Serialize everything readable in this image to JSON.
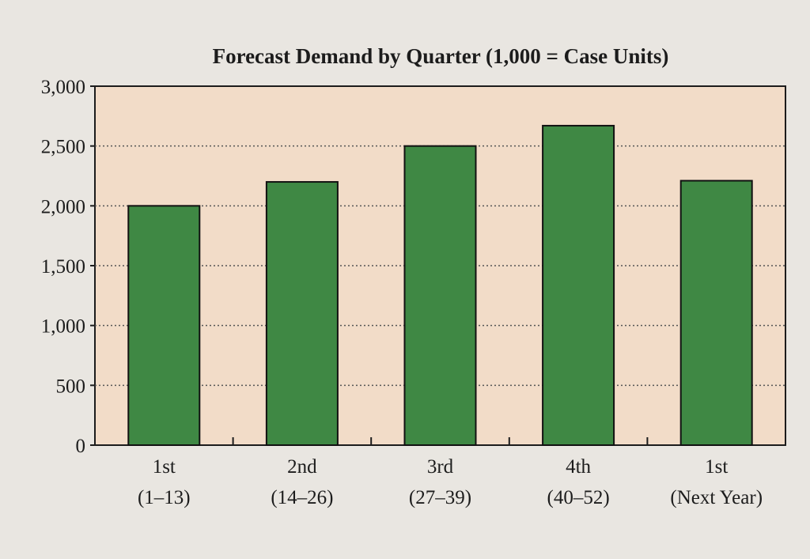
{
  "chart_data": {
    "type": "bar",
    "title": "Forecast Demand by Quarter (1,000 = Case Units)",
    "xlabel": "",
    "ylabel": "",
    "ylim": [
      0,
      3000
    ],
    "grid": true,
    "yticks": [
      0,
      500,
      1000,
      1500,
      2000,
      2500,
      3000
    ],
    "ytick_labels": [
      "0",
      "500",
      "1,000",
      "1,500",
      "2,000",
      "2,500",
      "3,000"
    ],
    "categories": [
      {
        "line1": "1st",
        "line2": "(1–13)"
      },
      {
        "line1": "2nd",
        "line2": "(14–26)"
      },
      {
        "line1": "3rd",
        "line2": "(27–39)"
      },
      {
        "line1": "4th",
        "line2": "(40–52)"
      },
      {
        "line1": "1st",
        "line2": "(Next Year)"
      }
    ],
    "values": [
      2000,
      2200,
      2500,
      2670,
      2210
    ],
    "colors": {
      "bar": "#3f8844",
      "plot_bg": "#f2dcc8",
      "page_bg": "#e9e6e1",
      "grid": "#555555",
      "axis": "#1c1c1c"
    }
  }
}
